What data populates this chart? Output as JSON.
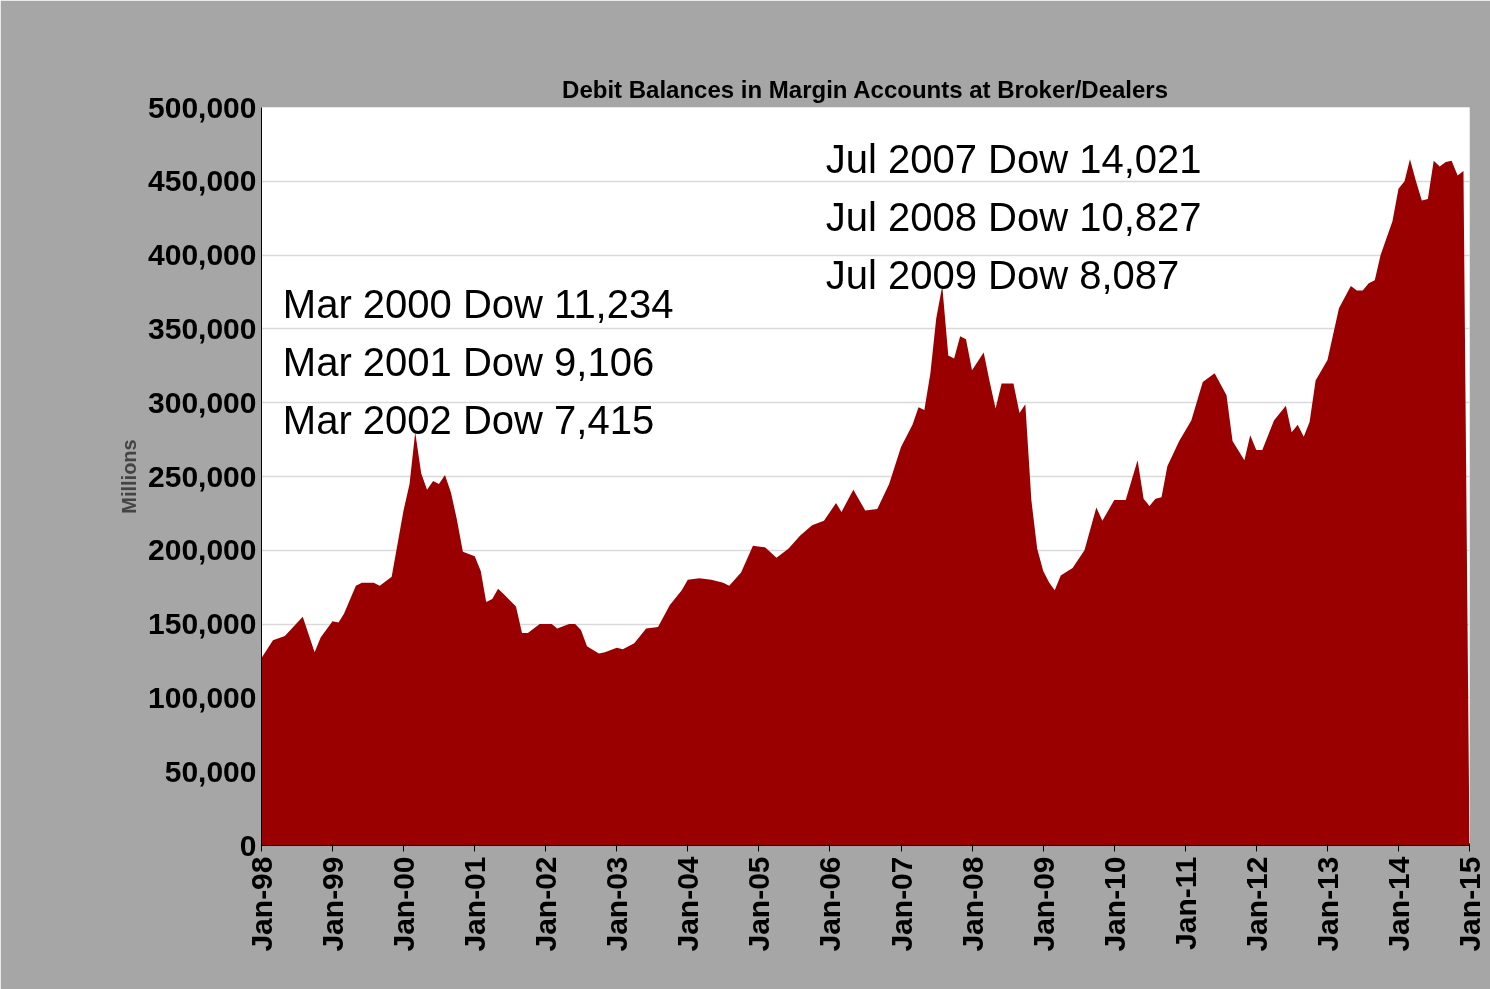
{
  "chart_data": {
    "type": "area",
    "title": "Debit Balances in Margin Accounts at Broker/Dealers",
    "ylabel": "Millions",
    "x": [
      "1998-01",
      "1998-03",
      "1998-05",
      "1998-08",
      "1998-10",
      "1998-11",
      "1999-01",
      "1999-02",
      "1999-03",
      "1999-05",
      "1999-06",
      "1999-08",
      "1999-09",
      "1999-11",
      "2000-01",
      "2000-02",
      "2000-03",
      "2000-04",
      "2000-05",
      "2000-06",
      "2000-07",
      "2000-08",
      "2000-09",
      "2000-10",
      "2000-11",
      "2001-01",
      "2001-02",
      "2001-03",
      "2001-04",
      "2001-05",
      "2001-06",
      "2001-08",
      "2001-09",
      "2001-10",
      "2001-12",
      "2002-02",
      "2002-03",
      "2002-05",
      "2002-06",
      "2002-07",
      "2002-08",
      "2002-10",
      "2002-11",
      "2003-01",
      "2003-02",
      "2003-04",
      "2003-06",
      "2003-08",
      "2003-10",
      "2003-12",
      "2004-01",
      "2004-03",
      "2004-05",
      "2004-07",
      "2004-08",
      "2004-10",
      "2004-12",
      "2005-02",
      "2005-04",
      "2005-06",
      "2005-08",
      "2005-10",
      "2005-12",
      "2006-02",
      "2006-03",
      "2006-05",
      "2006-07",
      "2006-09",
      "2006-11",
      "2007-01",
      "2007-03",
      "2007-04",
      "2007-05",
      "2007-06",
      "2007-07",
      "2007-08",
      "2007-09",
      "2007-10",
      "2007-11",
      "2007-12",
      "2008-01",
      "2008-03",
      "2008-04",
      "2008-05",
      "2008-06",
      "2008-08",
      "2008-09",
      "2008-10",
      "2008-11",
      "2008-12",
      "2009-01",
      "2009-02",
      "2009-03",
      "2009-04",
      "2009-06",
      "2009-08",
      "2009-10",
      "2009-11",
      "2010-01",
      "2010-03",
      "2010-05",
      "2010-06",
      "2010-07",
      "2010-08",
      "2010-09",
      "2010-10",
      "2010-12",
      "2011-02",
      "2011-04",
      "2011-06",
      "2011-08",
      "2011-09",
      "2011-11",
      "2011-12",
      "2012-01",
      "2012-02",
      "2012-04",
      "2012-06",
      "2012-07",
      "2012-08",
      "2012-09",
      "2012-10",
      "2012-11",
      "2013-01",
      "2013-03",
      "2013-05",
      "2013-06",
      "2013-07",
      "2013-08",
      "2013-09",
      "2013-10",
      "2013-12",
      "2014-01",
      "2014-02",
      "2014-03",
      "2014-04",
      "2014-05",
      "2014-06",
      "2014-07",
      "2014-08",
      "2014-09",
      "2014-10",
      "2014-11",
      "2014-12",
      "2015-01"
    ],
    "series": [
      {
        "color": "#9b0000",
        "values": [
          127000,
          139000,
          142000,
          155000,
          131000,
          141000,
          152000,
          151000,
          157000,
          176000,
          178000,
          178000,
          176000,
          182000,
          227000,
          245000,
          280000,
          252000,
          241000,
          247000,
          245000,
          251000,
          239000,
          221000,
          199000,
          196000,
          186000,
          165000,
          167000,
          174000,
          170000,
          162000,
          144000,
          144000,
          150000,
          150000,
          147000,
          150000,
          150000,
          146000,
          135000,
          130000,
          131000,
          134000,
          133000,
          137000,
          147000,
          148000,
          163000,
          173000,
          180000,
          181000,
          180000,
          178000,
          176000,
          185000,
          203000,
          202000,
          195000,
          201000,
          210000,
          217000,
          220000,
          232000,
          226000,
          241000,
          227000,
          228000,
          245000,
          270000,
          285000,
          297000,
          295000,
          320000,
          357000,
          379000,
          332000,
          330000,
          345000,
          343000,
          322000,
          334000,
          314000,
          296000,
          313000,
          313000,
          293000,
          299000,
          234000,
          201000,
          186000,
          178000,
          173000,
          183000,
          188000,
          200000,
          229000,
          220000,
          234000,
          234000,
          261000,
          235000,
          230000,
          235000,
          236000,
          257000,
          274000,
          288000,
          314000,
          320000,
          305000,
          274000,
          261000,
          278000,
          268000,
          268000,
          288000,
          298000,
          280000,
          285000,
          277000,
          287000,
          315000,
          329000,
          364000,
          379000,
          376000,
          376000,
          381000,
          383000,
          400000,
          423000,
          445000,
          450000,
          465000,
          450000,
          437000,
          438000,
          464000,
          460000,
          463000,
          464000,
          454000,
          457000,
          0
        ]
      }
    ],
    "xlim": [
      "1998-01",
      "2015-01"
    ],
    "xticks": [
      {
        "value": "1998-01",
        "label": "Jan-98"
      },
      {
        "value": "1999-01",
        "label": "Jan-99"
      },
      {
        "value": "2000-01",
        "label": "Jan-00"
      },
      {
        "value": "2001-01",
        "label": "Jan-01"
      },
      {
        "value": "2002-01",
        "label": "Jan-02"
      },
      {
        "value": "2003-01",
        "label": "Jan-03"
      },
      {
        "value": "2004-01",
        "label": "Jan-04"
      },
      {
        "value": "2005-01",
        "label": "Jan-05"
      },
      {
        "value": "2006-01",
        "label": "Jan-06"
      },
      {
        "value": "2007-01",
        "label": "Jan-07"
      },
      {
        "value": "2008-01",
        "label": "Jan-08"
      },
      {
        "value": "2009-01",
        "label": "Jan-09"
      },
      {
        "value": "2010-01",
        "label": "Jan-10"
      },
      {
        "value": "2011-01",
        "label": "Jan-11"
      },
      {
        "value": "2012-01",
        "label": "Jan-12"
      },
      {
        "value": "2013-01",
        "label": "Jan-13"
      },
      {
        "value": "2014-01",
        "label": "Jan-14"
      },
      {
        "value": "2015-01",
        "label": "Jan-15"
      }
    ],
    "ylim": [
      0,
      500000
    ],
    "yticks": [
      0,
      {
        "value": 50000,
        "label": "50,000"
      },
      {
        "value": 100000,
        "label": "100,000"
      },
      {
        "value": 150000,
        "label": "150,000"
      },
      {
        "value": 200000,
        "label": "200,000"
      },
      {
        "value": 250000,
        "label": "250,000"
      },
      {
        "value": 300000,
        "label": "300,000"
      },
      {
        "value": 350000,
        "label": "350,000"
      },
      {
        "value": 400000,
        "label": "400,000"
      },
      {
        "value": 450000,
        "label": "450,000"
      },
      {
        "value": 500000,
        "label": "500,000"
      }
    ],
    "grid": "y",
    "annotations": [
      "Mar 2000  Dow 11,234",
      "Mar 2001   Dow  9,106",
      "Mar 2002   Dow  7,415",
      "Jul 2007  Dow  14,021",
      "Jul 2008   Dow 10,827",
      "Jul 2009   Dow   8,087"
    ]
  }
}
